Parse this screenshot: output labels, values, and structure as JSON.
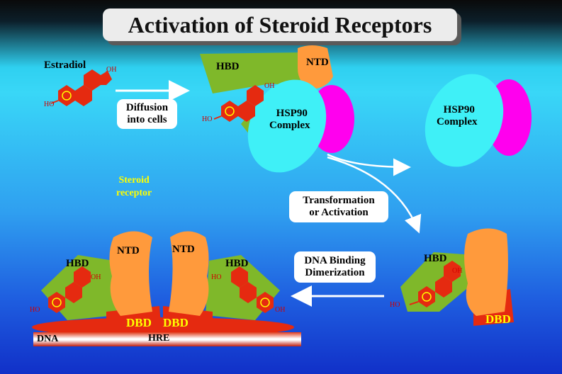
{
  "title": "Activation of Steroid Receptors",
  "labels": {
    "estradiol": "Estradiol",
    "oh": "OH",
    "ho": "HO",
    "hbd": "HBD",
    "ntd": "NTD",
    "dbd": "DBD",
    "hsp90_line1": "HSP90",
    "hsp90_line2": "Complex",
    "steroid_receptor_line1": "Steroid",
    "steroid_receptor_line2": "receptor",
    "dna": "DNA",
    "hre": "HRE"
  },
  "steps": {
    "diffusion_line1": "Diffusion",
    "diffusion_line2": "into cells",
    "transformation_line1": "Transformation",
    "transformation_line2": "or Activation",
    "dna_binding_line1": "DNA Binding",
    "dna_binding_line2": "Dimerization"
  },
  "colors": {
    "hbd": "#7fb82a",
    "ntd": "#ff9a3c",
    "dbd": "#e52a10",
    "hsp90": "#3ff0f7",
    "hsp90_partner": "#ff00ee",
    "molecule": "#e52a10",
    "highlight": "#ffff00"
  }
}
